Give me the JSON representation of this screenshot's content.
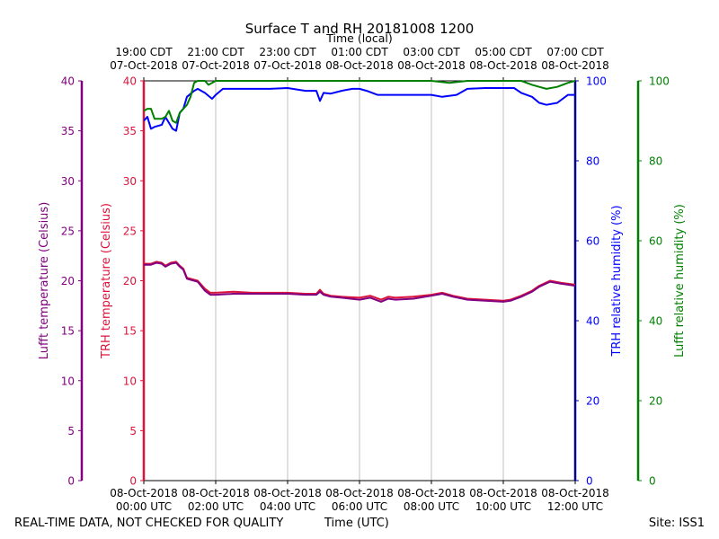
{
  "chart_data": {
    "type": "line",
    "title": "Surface T and RH 20181008 1200",
    "top_axis_label": "Time (local)",
    "bottom_axis_label": "Time (UTC)",
    "footer_left": "REAL-TIME DATA, NOT CHECKED FOR QUALITY",
    "footer_right": "Site: ISS1",
    "x_range_hours_utc": [
      0,
      12
    ],
    "x_ticks_utc": [
      {
        "h": 0,
        "line1": "08-Oct-2018",
        "line2": "00:00 UTC"
      },
      {
        "h": 2,
        "line1": "08-Oct-2018",
        "line2": "02:00 UTC"
      },
      {
        "h": 4,
        "line1": "08-Oct-2018",
        "line2": "04:00 UTC"
      },
      {
        "h": 6,
        "line1": "08-Oct-2018",
        "line2": "06:00 UTC"
      },
      {
        "h": 8,
        "line1": "08-Oct-2018",
        "line2": "08:00 UTC"
      },
      {
        "h": 10,
        "line1": "08-Oct-2018",
        "line2": "10:00 UTC"
      },
      {
        "h": 12,
        "line1": "08-Oct-2018",
        "line2": "12:00 UTC"
      }
    ],
    "x_ticks_local": [
      {
        "h": 0,
        "line1": "19:00 CDT",
        "line2": "07-Oct-2018"
      },
      {
        "h": 2,
        "line1": "21:00 CDT",
        "line2": "07-Oct-2018"
      },
      {
        "h": 4,
        "line1": "23:00 CDT",
        "line2": "07-Oct-2018"
      },
      {
        "h": 6,
        "line1": "01:00 CDT",
        "line2": "08-Oct-2018"
      },
      {
        "h": 8,
        "line1": "03:00 CDT",
        "line2": "08-Oct-2018"
      },
      {
        "h": 10,
        "line1": "05:00 CDT",
        "line2": "08-Oct-2018"
      },
      {
        "h": 12,
        "line1": "07:00 CDT",
        "line2": "08-Oct-2018"
      }
    ],
    "grid": "vertical",
    "axes": {
      "lufft_temp": {
        "label": "Lufft temperature (Celsius)",
        "color": "#800080",
        "range": [
          0,
          40
        ],
        "ticks": [
          0,
          5,
          10,
          15,
          20,
          25,
          30,
          35,
          40
        ]
      },
      "trh_temp": {
        "label": "TRH temperature (Celsius)",
        "color": "#dc143c",
        "range": [
          0,
          40
        ],
        "ticks": [
          0,
          5,
          10,
          15,
          20,
          25,
          30,
          35,
          40
        ]
      },
      "trh_rh": {
        "label": "TRH relative humidity (%)",
        "color": "#0000ff",
        "axis_color": "#00008b",
        "range": [
          0,
          100
        ],
        "ticks": [
          0,
          20,
          40,
          60,
          80,
          100
        ]
      },
      "lufft_rh": {
        "label": "Lufft relative humidity (%)",
        "color": "#008000",
        "range": [
          0,
          100
        ],
        "ticks": [
          0,
          20,
          40,
          60,
          80,
          100
        ]
      }
    },
    "series": [
      {
        "axis": "trh_temp",
        "color": "#dc143c",
        "x": [
          0,
          0.2,
          0.35,
          0.5,
          0.6,
          0.75,
          0.9,
          1.0,
          1.1,
          1.2,
          1.5,
          1.7,
          1.85,
          2.0,
          2.5,
          3.0,
          3.5,
          4.0,
          4.5,
          4.8,
          4.9,
          5.0,
          5.2,
          5.5,
          6.0,
          6.3,
          6.6,
          6.8,
          7.0,
          7.5,
          8.0,
          8.3,
          8.6,
          9.0,
          9.5,
          10.0,
          10.2,
          10.5,
          10.8,
          11.0,
          11.3,
          11.6,
          12.0
        ],
        "y": [
          21.7,
          21.7,
          21.9,
          21.8,
          21.5,
          21.8,
          21.9,
          21.5,
          21.2,
          20.3,
          20.0,
          19.2,
          18.8,
          18.8,
          18.9,
          18.8,
          18.8,
          18.8,
          18.7,
          18.7,
          19.1,
          18.7,
          18.5,
          18.4,
          18.3,
          18.5,
          18.1,
          18.4,
          18.3,
          18.4,
          18.6,
          18.8,
          18.5,
          18.2,
          18.1,
          18.0,
          18.1,
          18.5,
          19.0,
          19.5,
          20.0,
          19.8,
          19.6
        ]
      },
      {
        "axis": "lufft_temp",
        "color": "#800080",
        "x": [
          0,
          0.2,
          0.35,
          0.5,
          0.6,
          0.75,
          0.9,
          1.0,
          1.1,
          1.2,
          1.5,
          1.7,
          1.85,
          2.0,
          2.5,
          3.0,
          3.5,
          4.0,
          4.5,
          4.8,
          4.9,
          5.0,
          5.2,
          5.5,
          6.0,
          6.3,
          6.6,
          6.8,
          7.0,
          7.5,
          8.0,
          8.3,
          8.6,
          9.0,
          9.5,
          10.0,
          10.2,
          10.5,
          10.8,
          11.0,
          11.3,
          11.6,
          12.0
        ],
        "y": [
          21.6,
          21.6,
          21.8,
          21.7,
          21.4,
          21.7,
          21.8,
          21.4,
          21.1,
          20.2,
          19.9,
          19.0,
          18.6,
          18.6,
          18.7,
          18.7,
          18.7,
          18.7,
          18.6,
          18.6,
          18.9,
          18.6,
          18.4,
          18.3,
          18.1,
          18.3,
          17.9,
          18.2,
          18.1,
          18.2,
          18.5,
          18.7,
          18.4,
          18.1,
          18.0,
          17.9,
          18.0,
          18.4,
          18.9,
          19.4,
          19.9,
          19.7,
          19.5
        ]
      },
      {
        "axis": "trh_rh",
        "color": "#0000ff",
        "x": [
          0,
          0.1,
          0.2,
          0.3,
          0.5,
          0.6,
          0.8,
          0.9,
          1.0,
          1.1,
          1.2,
          1.4,
          1.5,
          1.7,
          1.9,
          2.0,
          2.2,
          2.5,
          3.0,
          3.5,
          4.0,
          4.5,
          4.8,
          4.9,
          5.0,
          5.2,
          5.5,
          5.8,
          6.0,
          6.2,
          6.5,
          7.0,
          7.5,
          8.0,
          8.3,
          8.7,
          9.0,
          9.5,
          10.0,
          10.3,
          10.5,
          10.8,
          11.0,
          11.2,
          11.5,
          11.8,
          12.0
        ],
        "y": [
          90.0,
          91.0,
          88.0,
          88.5,
          89.0,
          91.0,
          88.0,
          87.5,
          92.0,
          93.0,
          96.0,
          97.5,
          98.0,
          97.0,
          95.5,
          96.5,
          98.0,
          98.0,
          98.0,
          98.0,
          98.2,
          97.5,
          97.5,
          95.0,
          97.0,
          96.8,
          97.5,
          98.0,
          98.0,
          97.5,
          96.5,
          96.5,
          96.5,
          96.5,
          96.0,
          96.5,
          98.0,
          98.2,
          98.2,
          98.2,
          97.0,
          96.0,
          94.5,
          94.0,
          94.5,
          96.5,
          96.5
        ]
      },
      {
        "axis": "lufft_rh",
        "color": "#008000",
        "x": [
          0,
          0.1,
          0.2,
          0.3,
          0.5,
          0.6,
          0.7,
          0.8,
          0.9,
          1.0,
          1.2,
          1.3,
          1.4,
          1.5,
          1.7,
          1.8,
          1.9,
          2.0,
          3.0,
          4.0,
          5.0,
          6.0,
          7.0,
          8.0,
          8.5,
          9.0,
          10.0,
          10.5,
          10.8,
          11.0,
          11.2,
          11.5,
          11.8,
          12.0
        ],
        "y": [
          92.5,
          93.0,
          93.0,
          90.5,
          90.5,
          91.0,
          92.5,
          90.0,
          89.5,
          92.0,
          94.0,
          96.0,
          99.5,
          100.0,
          100.0,
          99.0,
          99.5,
          100.0,
          100.0,
          100.0,
          100.0,
          100.0,
          100.0,
          100.0,
          99.5,
          100.0,
          100.0,
          100.0,
          99.0,
          98.5,
          98.0,
          98.5,
          99.5,
          100.0
        ]
      }
    ]
  }
}
